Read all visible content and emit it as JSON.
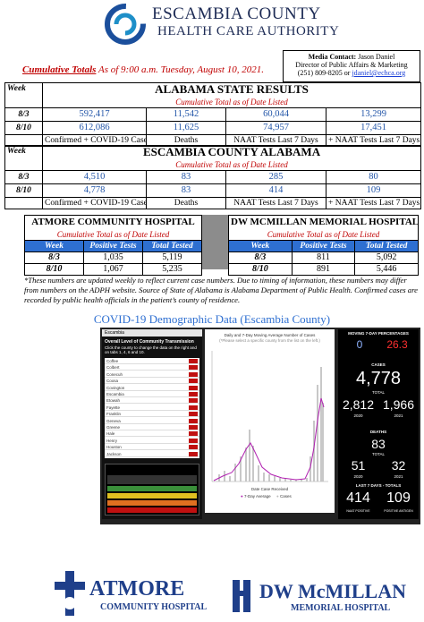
{
  "header": {
    "org_line1": "ESCAMBIA COUNTY",
    "org_line2": "HEALTH CARE AUTHORITY"
  },
  "media_contact": {
    "label": "Media Contact:",
    "name": "Jason Daniel",
    "title": "Director of Public Affairs & Marketing",
    "phone": "(251) 809-8205 or",
    "email": "jdaniel@echca.org"
  },
  "dateline": {
    "emphasis": "Cumulative Totals",
    "text": "As of 9:00 a.m. Tuesday, August 10, 2021."
  },
  "state_table": {
    "week_header": "Week",
    "title": "ALABAMA STATE RESULTS",
    "subtitle": "Cumulative Total as of Date Listed",
    "rows": [
      [
        "8/3",
        "592,417",
        "11,542",
        "60,044",
        "13,299"
      ],
      [
        "8/10",
        "612,086",
        "11,625",
        "74,957",
        "17,451"
      ]
    ],
    "labels": [
      "Confirmed + COVID-19 Cases",
      "Deaths",
      "NAAT Tests Last 7 Days",
      "+ NAAT Tests Last 7 Days"
    ]
  },
  "county_table": {
    "week_header": "Week",
    "title": "ESCAMBIA COUNTY ALABAMA",
    "subtitle": "Cumulative Total as of Date Listed",
    "rows": [
      [
        "8/3",
        "4,510",
        "83",
        "285",
        "80"
      ],
      [
        "8/10",
        "4,778",
        "83",
        "414",
        "109"
      ]
    ],
    "labels": [
      "Confirmed + COVID-19 Cases",
      "Deaths",
      "NAAT Tests Last 7 Days",
      "+ NAAT Tests Last 7 Days"
    ]
  },
  "hospitals": [
    {
      "title": "ATMORE COMMUNITY HOSPITAL",
      "subtitle": "Cumulative Total as of Date Listed",
      "headers": [
        "Week",
        "Positive Tests",
        "Total Tested"
      ],
      "rows": [
        [
          "8/3",
          "1,035",
          "5,119"
        ],
        [
          "8/10",
          "1,067",
          "5,235"
        ]
      ]
    },
    {
      "title": "DW MCMILLAN MEMORIAL HOSPITAL",
      "subtitle": "Cumulative Total as of Date Listed",
      "headers": [
        "Week",
        "Positive Tests",
        "Total Tested"
      ],
      "rows": [
        [
          "8/3",
          "811",
          "5,092"
        ],
        [
          "8/10",
          "891",
          "5,446"
        ]
      ]
    }
  ],
  "footnote": "*These numbers are updated weekly to reflect current case numbers. Due to timing of information, these numbers may differ from numbers on the ADPH website. Source of State of Alabama is Alabama Department of Public Health. Confirmed cases are recorded by public health officials in the patient’s county of residence.",
  "dashboard": {
    "heading": "COVID-19 Demographic Data (Escambia County)",
    "county": "Escambia",
    "transmission_title": "Overall Level of Community Transmission",
    "transmission_note": "Click the county to change the data on the right and on tabs 1, 4, 6 and 10.",
    "counties": [
      "Coffee",
      "Colbert",
      "Conecuh",
      "Coosa",
      "Covington",
      "Escambia",
      "Etowah",
      "Fayette",
      "Franklin",
      "Geneva",
      "Greene",
      "Hale",
      "Henry",
      "Houston",
      "Jackson"
    ],
    "chart_title": "Daily and 7-Day Moving Average Number of Cases",
    "chart_note": "(*Please select a specific county from the list on the left.)",
    "x_axis_title": "Date Case Received",
    "legend": [
      "7-Day Average",
      "Cases"
    ],
    "moving_title": "MOVING 7-DAY PERCENTAGES",
    "pct_positivity": "0",
    "pct_change": "26.3",
    "cases_title": "CASES",
    "cases_total": "4,778",
    "total_label": "TOTAL",
    "cases_2020": "2,812",
    "cases_2021": "1,966",
    "year_2020": "2020",
    "year_2021": "2021",
    "deaths_title": "DEATHS",
    "deaths_total": "83",
    "deaths_2020": "51",
    "deaths_2021": "32",
    "last7_title": "LAST 7 DAYS - TOTALS",
    "last7_cases": "414",
    "last7_tests": "109",
    "last7_cases_label": "NAAT POSITIVE",
    "last7_tests_label": "POSITIVE ANTIGEN"
  },
  "footer": {
    "atmore_name": "ATMORE",
    "atmore_sub": "COMMUNITY HOSPITAL",
    "dw_name": "DW McMILLAN",
    "dw_sub": "MEMORIAL HOSPITAL"
  }
}
